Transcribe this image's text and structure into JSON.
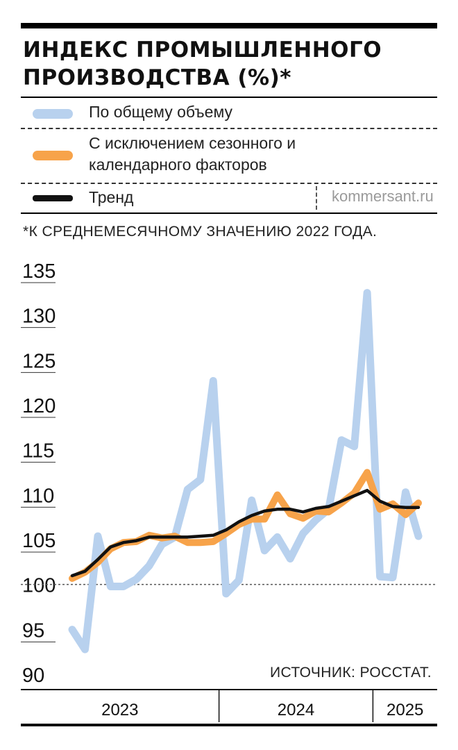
{
  "header": {
    "title": "ИНДЕКС ПРОМЫШЛЕННОГО ПРОИЗВОДСТВА (%)*"
  },
  "legend": [
    {
      "label": "По общему объему",
      "color": "#b8d1ee"
    },
    {
      "label": "С исключением сезонного и календарного факторов",
      "color": "#f7a34a"
    },
    {
      "label": "Тренд",
      "color": "#111111"
    }
  ],
  "brand": "kommersant.ru",
  "footnote": "*К СРЕДНЕМЕСЯЧНОМУ ЗНАЧЕНИЮ 2022 ГОДА.",
  "source": "ИСТОЧНИК: РОССТАТ.",
  "chart_data": {
    "type": "line",
    "title": "ИНДЕКС ПРОМЫШЛЕННОГО ПРОИЗВОДСТВА (%)*",
    "xlabel": "",
    "ylabel": "",
    "ylim": [
      90,
      135
    ],
    "yticks": [
      135,
      130,
      125,
      120,
      115,
      110,
      105,
      100,
      95,
      90
    ],
    "reference_line": 100,
    "grid": false,
    "legend_position": "top",
    "x_groups": [
      {
        "label": "2023",
        "months": 12
      },
      {
        "label": "2024",
        "months": 12
      },
      {
        "label": "2025",
        "months": 4
      }
    ],
    "x": [
      "2023-01",
      "2023-02",
      "2023-03",
      "2023-04",
      "2023-05",
      "2023-06",
      "2023-07",
      "2023-08",
      "2023-09",
      "2023-10",
      "2023-11",
      "2023-12",
      "2024-01",
      "2024-02",
      "2024-03",
      "2024-04",
      "2024-05",
      "2024-06",
      "2024-07",
      "2024-08",
      "2024-09",
      "2024-10",
      "2024-11",
      "2024-12",
      "2025-01",
      "2025-02",
      "2025-03",
      "2025-04"
    ],
    "series": [
      {
        "name": "По общему объему",
        "color": "#b8d1ee",
        "values": [
          94.9,
          92.7,
          105.3,
          99.7,
          99.7,
          100.5,
          102.0,
          104.4,
          105.2,
          110.5,
          111.6,
          122.6,
          98.9,
          100.4,
          109.3,
          103.7,
          105.2,
          102.8,
          105.6,
          107.1,
          108.3,
          116.0,
          115.3,
          132.4,
          100.8,
          100.7,
          110.2,
          105.3
        ]
      },
      {
        "name": "С исключением сезонного и календарного факторов",
        "color": "#f7a34a",
        "values": [
          100.6,
          101.3,
          102.4,
          103.9,
          104.6,
          104.7,
          105.4,
          105.1,
          105.3,
          104.6,
          104.6,
          104.7,
          105.6,
          106.6,
          107.2,
          107.2,
          109.9,
          107.8,
          107.3,
          108.1,
          108.0,
          109.0,
          110.1,
          112.4,
          108.3,
          108.9,
          107.7,
          109.0
        ]
      },
      {
        "name": "Тренд",
        "color": "#111111",
        "values": [
          100.9,
          101.4,
          102.7,
          104.1,
          104.6,
          104.8,
          105.2,
          105.2,
          105.2,
          105.2,
          105.3,
          105.4,
          106.0,
          106.9,
          107.6,
          108.1,
          108.3,
          108.3,
          108.0,
          108.4,
          108.6,
          109.2,
          109.8,
          110.4,
          109.2,
          108.6,
          108.5,
          108.5
        ]
      }
    ]
  }
}
